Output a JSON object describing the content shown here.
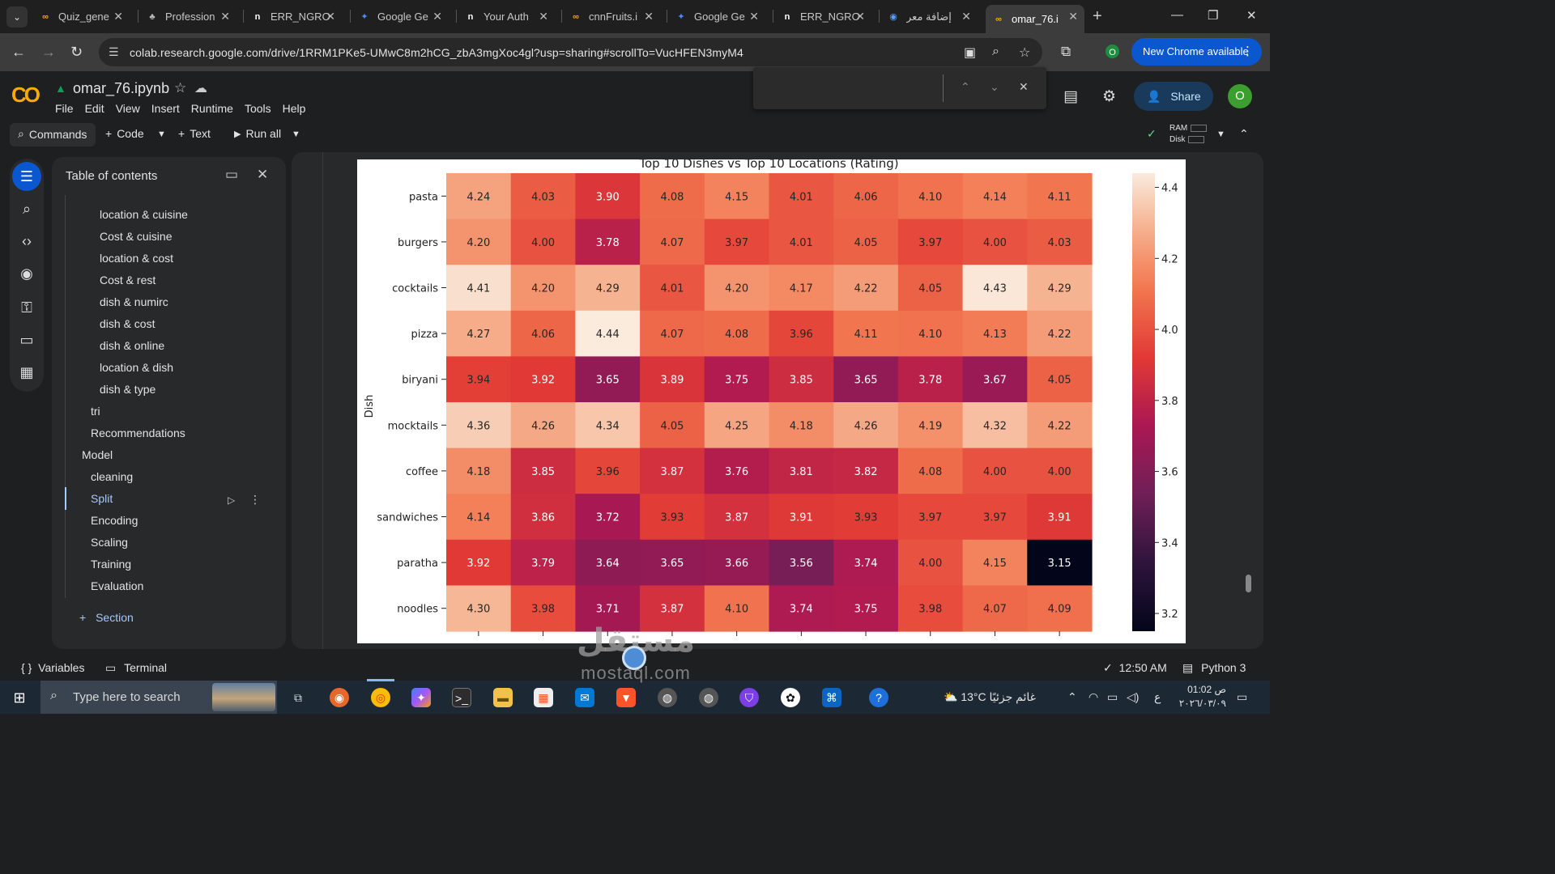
{
  "browser": {
    "tabs": [
      {
        "title": "Quiz_gene",
        "icon": "colab-icon"
      },
      {
        "title": "Profession",
        "icon": "handshake-icon"
      },
      {
        "title": "ERR_NGRO",
        "icon": "ngrok-icon"
      },
      {
        "title": "Google Ge",
        "icon": "gemini-icon"
      },
      {
        "title": "Your Auth",
        "icon": "ngrok-icon"
      },
      {
        "title": "cnnFruits.i",
        "icon": "colab-icon"
      },
      {
        "title": "Google Ge",
        "icon": "gemini-icon"
      },
      {
        "title": "ERR_NGRO",
        "icon": "ngrok-icon"
      },
      {
        "title": "إضافة معر",
        "icon": "globe-icon"
      },
      {
        "title": "omar_76.i",
        "icon": "colab-icon",
        "active": true
      }
    ],
    "url": "colab.research.google.com/drive/1RRM1PKe5-UMwC8m2hCG_zbA3mgXoc4gl?usp=sharing#scrollTo=VucHFEN3myM4",
    "profile_initial": "O",
    "new_chrome_label": "New Chrome available"
  },
  "colab": {
    "notebook_title": "omar_76.ipynb",
    "menu": [
      "File",
      "Edit",
      "View",
      "Insert",
      "Runtime",
      "Tools",
      "Help"
    ],
    "share_label": "Share",
    "avatar_initial": "O",
    "toolbar": {
      "commands": "Commands",
      "code": "Code",
      "text": "Text",
      "run_all": "Run all"
    },
    "resources": {
      "ram": "RAM",
      "disk": "Disk"
    }
  },
  "toc": {
    "title": "Table of contents",
    "items": [
      {
        "label": "location & cuisine"
      },
      {
        "label": "Cost & cuisine"
      },
      {
        "label": "location & cost"
      },
      {
        "label": "Cost & rest"
      },
      {
        "label": "dish & numirc"
      },
      {
        "label": "dish & cost"
      },
      {
        "label": "dish & online"
      },
      {
        "label": "location & dish"
      },
      {
        "label": "dish & type"
      },
      {
        "label": "tri"
      },
      {
        "label": "Recommendations"
      },
      {
        "label": "Model"
      },
      {
        "label": "cleaning"
      },
      {
        "label": "Split",
        "active": true
      },
      {
        "label": "Encoding"
      },
      {
        "label": "Scaling"
      },
      {
        "label": "Training"
      },
      {
        "label": "Evaluation"
      }
    ],
    "add_section": "Section"
  },
  "chart_data": {
    "type": "heatmap",
    "title": "Top 10 Dishes vs Top 10 Locations (Rating)",
    "ylabel": "Dish",
    "rows": [
      "pasta",
      "burgers",
      "cocktails",
      "pizza",
      "biryani",
      "mocktails",
      "coffee",
      "sandwiches",
      "paratha",
      "noodles"
    ],
    "values": [
      [
        4.24,
        4.03,
        3.9,
        4.08,
        4.15,
        4.01,
        4.06,
        4.1,
        4.14,
        4.11
      ],
      [
        4.2,
        4.0,
        3.78,
        4.07,
        3.97,
        4.01,
        4.05,
        3.97,
        4.0,
        4.03
      ],
      [
        4.41,
        4.2,
        4.29,
        4.01,
        4.2,
        4.17,
        4.22,
        4.05,
        4.43,
        4.29
      ],
      [
        4.27,
        4.06,
        4.44,
        4.07,
        4.08,
        3.96,
        4.11,
        4.1,
        4.13,
        4.22
      ],
      [
        3.94,
        3.92,
        3.65,
        3.89,
        3.75,
        3.85,
        3.65,
        3.78,
        3.67,
        4.05
      ],
      [
        4.36,
        4.26,
        4.34,
        4.05,
        4.25,
        4.18,
        4.26,
        4.19,
        4.32,
        4.22
      ],
      [
        4.18,
        3.85,
        3.96,
        3.87,
        3.76,
        3.81,
        3.82,
        4.08,
        4.0,
        4.0
      ],
      [
        4.14,
        3.86,
        3.72,
        3.93,
        3.87,
        3.91,
        3.93,
        3.97,
        3.97,
        3.91
      ],
      [
        3.92,
        3.79,
        3.64,
        3.65,
        3.66,
        3.56,
        3.74,
        4.0,
        4.15,
        3.15
      ],
      [
        4.3,
        3.98,
        3.71,
        3.87,
        4.1,
        3.74,
        3.75,
        3.98,
        4.07,
        4.09
      ]
    ],
    "colorbar": {
      "min": 3.15,
      "max": 4.44,
      "ticks": [
        3.2,
        3.4,
        3.6,
        3.8,
        4.0,
        4.2,
        4.4
      ],
      "colormap": "rocket"
    }
  },
  "statusbar": {
    "variables": "Variables",
    "terminal": "Terminal",
    "time": "12:50 AM",
    "runtime": "Python 3"
  },
  "taskbar": {
    "search_placeholder": "Type here to search",
    "weather": "13°C  غائم جزئيًا",
    "lang": "ع",
    "clock_time": "01:02 ص",
    "clock_date": "٢٠٢٦/٠٣/٠٩"
  },
  "watermark": {
    "text": "مستقل",
    "sub": "mostaql.com"
  }
}
